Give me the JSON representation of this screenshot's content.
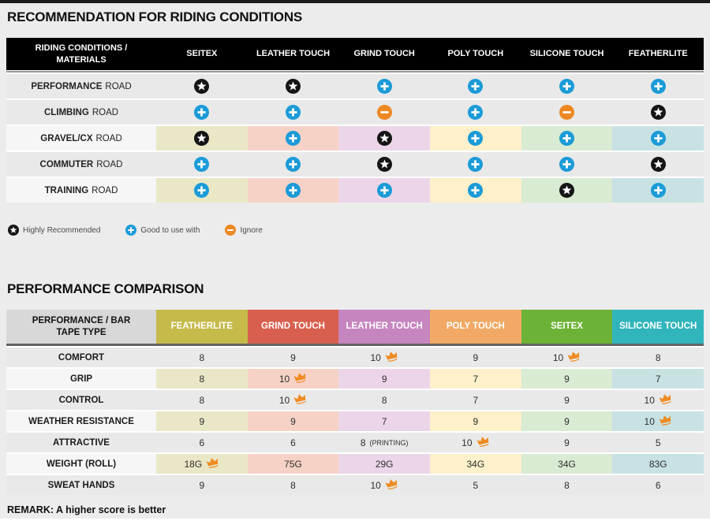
{
  "icons": {
    "star_color": "#151515",
    "plus_color": "#1b9bd8",
    "minus_color": "#ee8822",
    "crown_color": "#ef8c22"
  },
  "recommendation": {
    "title": "RECOMMENDATION FOR RIDING CONDITIONS",
    "header": {
      "label": "RIDING CONDITIONS / MATERIALS",
      "columns": [
        "SEITEX",
        "LEATHER TOUCH",
        "GRIND TOUCH",
        "POLY TOUCH",
        "SILICONE TOUCH",
        "FEATHERLITE"
      ]
    },
    "row_bg_gray": "#e9e9e9",
    "row_bg_light": "#f6f6f6",
    "column_tints": [
      "#eae7c6",
      "#f6d2c6",
      "#edd5e9",
      "#fdf0ca",
      "#d9ebd2",
      "#c8e2e4"
    ],
    "rows": [
      {
        "label_bold": "PERFORMANCE",
        "label_rest": "ROAD",
        "tinted": false,
        "icons": [
          "star",
          "star",
          "plus",
          "plus",
          "plus",
          "plus"
        ]
      },
      {
        "label_bold": "CLIMBING",
        "label_rest": "ROAD",
        "tinted": false,
        "icons": [
          "plus",
          "plus",
          "minus",
          "plus",
          "minus",
          "star"
        ]
      },
      {
        "label_bold": "GRAVEL/CX",
        "label_rest": "ROAD",
        "tinted": true,
        "icons": [
          "star",
          "plus",
          "star",
          "plus",
          "plus",
          "plus"
        ]
      },
      {
        "label_bold": "COMMUTER",
        "label_rest": "ROAD",
        "tinted": false,
        "icons": [
          "plus",
          "plus",
          "star",
          "plus",
          "plus",
          "star"
        ]
      },
      {
        "label_bold": "TRAINING",
        "label_rest": "ROAD",
        "tinted": true,
        "icons": [
          "plus",
          "plus",
          "plus",
          "plus",
          "star",
          "plus"
        ]
      }
    ],
    "legend": [
      {
        "icon": "star",
        "label": "Highly Recommended"
      },
      {
        "icon": "plus",
        "label": "Good to use with"
      },
      {
        "icon": "minus",
        "label": "Ignore"
      }
    ]
  },
  "performance": {
    "title": "PERFORMANCE COMPARISON",
    "header": {
      "label": "PERFORMANCE / BAR TAPE TYPE",
      "columns": [
        {
          "name": "FEATHERLITE",
          "color": "#c5ba4a"
        },
        {
          "name": "GRIND TOUCH",
          "color": "#d85f4d"
        },
        {
          "name": "LEATHER TOUCH",
          "color": "#c685be"
        },
        {
          "name": "POLY TOUCH",
          "color": "#f2a965"
        },
        {
          "name": "SEITEX",
          "color": "#6cb236"
        },
        {
          "name": "SILICONE TOUCH",
          "color": "#30b5bc"
        }
      ]
    },
    "row_bg_gray": "#e9e9e9",
    "row_bg_light": "#f6f6f6",
    "column_tints": [
      "#eae7c6",
      "#f6d2c6",
      "#edd5e9",
      "#fdf0ca",
      "#d9ebd2",
      "#c8e2e4"
    ],
    "rows": [
      {
        "label": "COMFORT",
        "tinted": false,
        "cells": [
          {
            "v": "8"
          },
          {
            "v": "9"
          },
          {
            "v": "10",
            "crown": true
          },
          {
            "v": "9"
          },
          {
            "v": "10",
            "crown": true
          },
          {
            "v": "8"
          }
        ]
      },
      {
        "label": "GRIP",
        "tinted": true,
        "cells": [
          {
            "v": "8"
          },
          {
            "v": "10",
            "crown": true
          },
          {
            "v": "9"
          },
          {
            "v": "7"
          },
          {
            "v": "9"
          },
          {
            "v": "7"
          }
        ]
      },
      {
        "label": "CONTROL",
        "tinted": false,
        "cells": [
          {
            "v": "8"
          },
          {
            "v": "10",
            "crown": true
          },
          {
            "v": "8"
          },
          {
            "v": "7"
          },
          {
            "v": "9"
          },
          {
            "v": "10",
            "crown": true
          }
        ]
      },
      {
        "label": "WEATHER RESISTANCE",
        "tinted": true,
        "cells": [
          {
            "v": "9"
          },
          {
            "v": "9"
          },
          {
            "v": "7"
          },
          {
            "v": "9"
          },
          {
            "v": "9"
          },
          {
            "v": "10",
            "crown": true
          }
        ]
      },
      {
        "label": "ATTRACTIVE",
        "tinted": false,
        "cells": [
          {
            "v": "6"
          },
          {
            "v": "6"
          },
          {
            "v": "8",
            "note": "(PRINTING)"
          },
          {
            "v": "10",
            "crown": true
          },
          {
            "v": "9"
          },
          {
            "v": "5"
          }
        ]
      },
      {
        "label": "WEIGHT (ROLL)",
        "tinted": true,
        "cells": [
          {
            "v": "18G",
            "crown": true
          },
          {
            "v": "75G"
          },
          {
            "v": "29G"
          },
          {
            "v": "34G"
          },
          {
            "v": "34G"
          },
          {
            "v": "83G"
          }
        ]
      },
      {
        "label": "SWEAT HANDS",
        "tinted": false,
        "cells": [
          {
            "v": "9"
          },
          {
            "v": "8"
          },
          {
            "v": "10",
            "crown": true
          },
          {
            "v": "5"
          },
          {
            "v": "8"
          },
          {
            "v": "6"
          }
        ]
      }
    ],
    "remark": "REMARK: A higher score is better"
  }
}
